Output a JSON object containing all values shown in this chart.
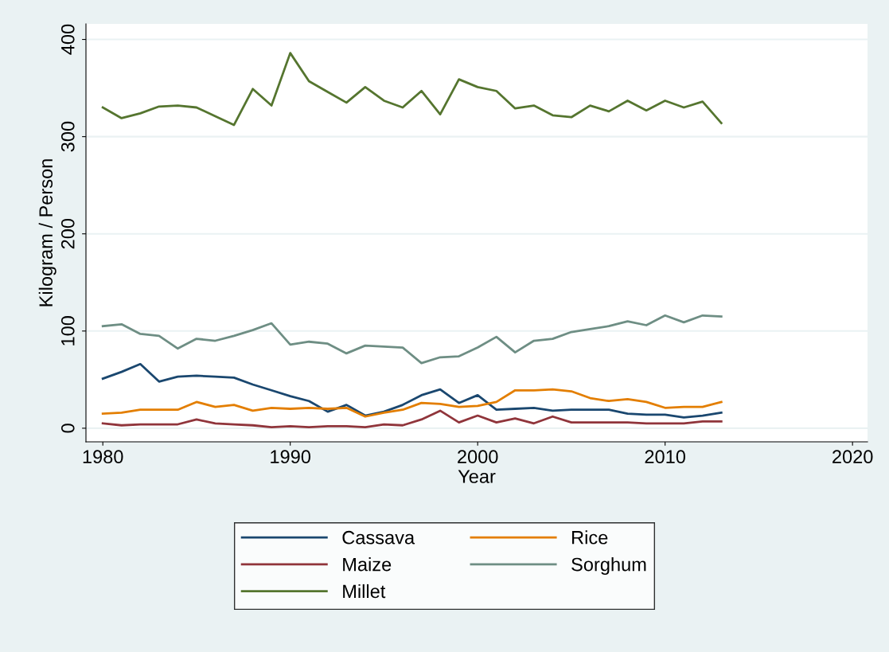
{
  "chart_data": {
    "type": "line",
    "xlabel": "Year",
    "ylabel": "Kilogram / Person",
    "x": [
      1980,
      1981,
      1982,
      1983,
      1984,
      1985,
      1986,
      1987,
      1988,
      1989,
      1990,
      1991,
      1992,
      1993,
      1994,
      1995,
      1996,
      1997,
      1998,
      1999,
      2000,
      2001,
      2002,
      2003,
      2004,
      2005,
      2006,
      2007,
      2008,
      2009,
      2010,
      2011,
      2012,
      2013
    ],
    "series": [
      {
        "name": "Cassava",
        "color": "#1a476f",
        "values": [
          51,
          58,
          66,
          48,
          53,
          54,
          53,
          52,
          45,
          39,
          33,
          28,
          17,
          24,
          13,
          17,
          24,
          34,
          40,
          26,
          34,
          19,
          20,
          21,
          18,
          19,
          19,
          19,
          15,
          14,
          14,
          11,
          13,
          16
        ]
      },
      {
        "name": "Maize",
        "color": "#90353b",
        "values": [
          5,
          3,
          4,
          4,
          4,
          9,
          5,
          4,
          3,
          1,
          2,
          1,
          2,
          2,
          1,
          4,
          3,
          9,
          18,
          6,
          13,
          6,
          10,
          5,
          12,
          6,
          6,
          6,
          6,
          5,
          5,
          5,
          7,
          7
        ]
      },
      {
        "name": "Millet",
        "color": "#55752f",
        "values": [
          330,
          319,
          324,
          331,
          332,
          330,
          321,
          312,
          349,
          332,
          386,
          357,
          346,
          335,
          351,
          337,
          330,
          347,
          323,
          359,
          351,
          347,
          329,
          332,
          322,
          320,
          332,
          326,
          337,
          327,
          337,
          330,
          336,
          314
        ]
      },
      {
        "name": "Rice",
        "color": "#e37e00",
        "values": [
          15,
          16,
          19,
          19,
          19,
          27,
          22,
          24,
          18,
          21,
          20,
          21,
          20,
          21,
          12,
          16,
          19,
          26,
          25,
          22,
          23,
          27,
          39,
          39,
          40,
          38,
          31,
          28,
          30,
          27,
          21,
          22,
          22,
          27
        ]
      },
      {
        "name": "Sorghum",
        "color": "#6e8e84",
        "values": [
          105,
          107,
          97,
          95,
          82,
          92,
          90,
          95,
          101,
          108,
          86,
          89,
          87,
          77,
          85,
          84,
          83,
          67,
          73,
          74,
          83,
          94,
          78,
          90,
          92,
          99,
          102,
          105,
          110,
          106,
          116,
          109,
          116,
          115
        ]
      }
    ],
    "xlim": [
      1979.1,
      2020.8
    ],
    "xticks": [
      1980,
      1990,
      2000,
      2010,
      2020
    ],
    "ylim": [
      -14,
      416
    ],
    "yticks": [
      0,
      100,
      200,
      300,
      400
    ],
    "grid": "y",
    "legend": "bottom",
    "marker": "none",
    "line_style": "solid"
  }
}
